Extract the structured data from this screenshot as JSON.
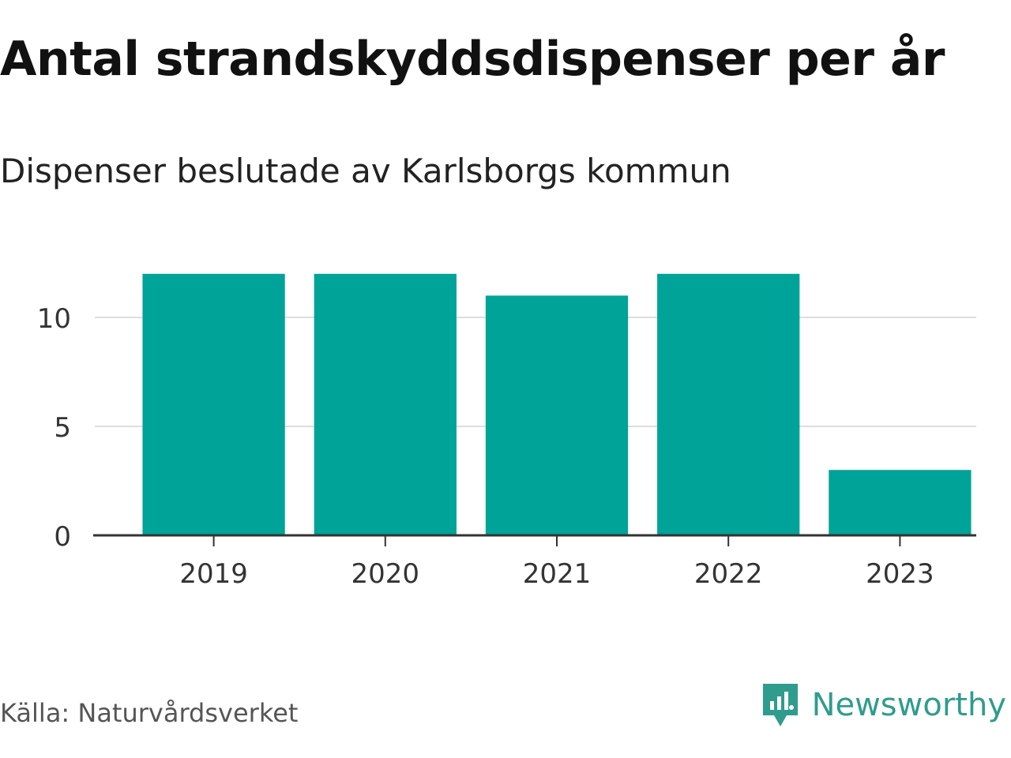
{
  "header": {
    "title": "Antal strandskyddsdispenser per år",
    "subtitle": "Dispenser beslutade av Karlsborgs kommun"
  },
  "chart_data": {
    "type": "bar",
    "title": "Antal strandskyddsdispenser per år",
    "subtitle": "Dispenser beslutade av Karlsborgs kommun",
    "categories": [
      "2019",
      "2020",
      "2021",
      "2022",
      "2023"
    ],
    "values": [
      12,
      12,
      11,
      12,
      3
    ],
    "xlabel": "",
    "ylabel": "",
    "ylim": [
      0,
      13
    ],
    "yticks": [
      0,
      5,
      10
    ],
    "grid": true,
    "legend": "none",
    "bar_color": "#00A398"
  },
  "footer": {
    "source": "Källa: Naturvårdsverket",
    "brand": "Newsworthy"
  },
  "colors": {
    "bar": "#00A398",
    "brand": "#2F9C8E",
    "grid": "#DDDDDD",
    "axis": "#333333",
    "tick_text": "#333333"
  }
}
